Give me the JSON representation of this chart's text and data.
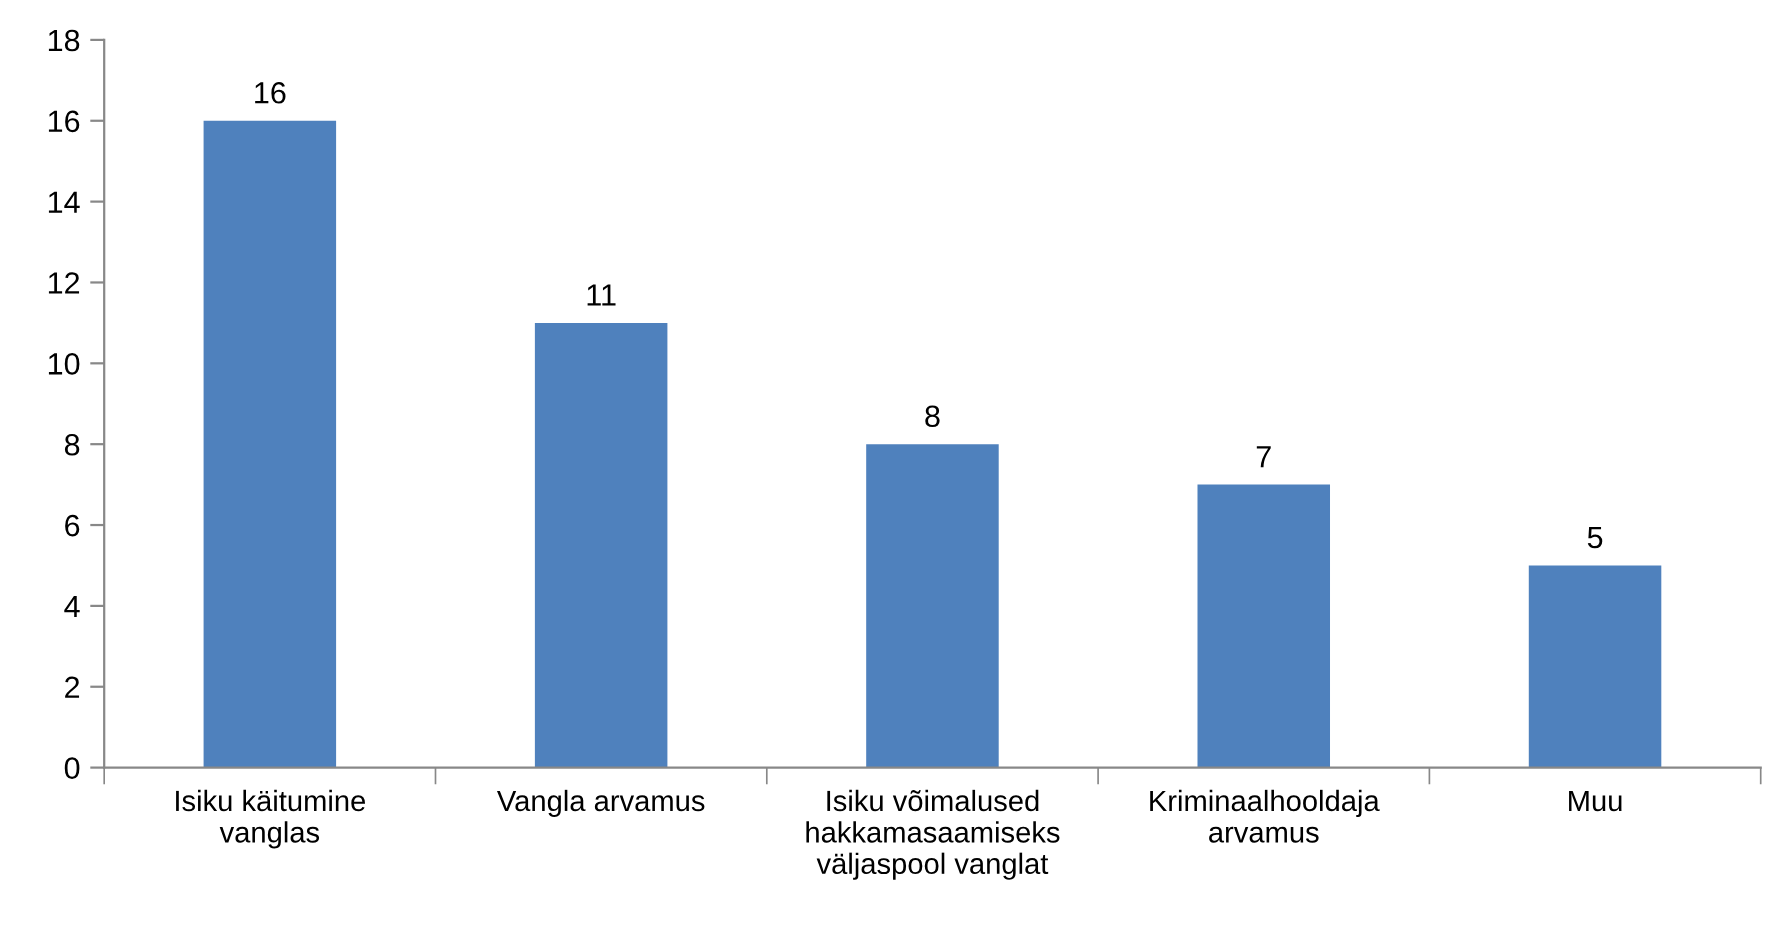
{
  "chart_data": {
    "type": "bar",
    "categories": [
      "Isiku käitumine\nvanglas",
      "Vangla arvamus",
      "Isiku võimalused\nhakkamasaamiseks\nväljaspool vanglat",
      "Kriminaalhooldaja\narvamus",
      "Muu"
    ],
    "values": [
      16,
      11,
      8,
      7,
      5
    ],
    "color": "#4f81bd",
    "ylim": [
      0,
      18
    ],
    "yticks": [
      0,
      2,
      4,
      6,
      8,
      10,
      12,
      14,
      16,
      18
    ],
    "grid": false,
    "legend": false,
    "data_labels": true
  }
}
